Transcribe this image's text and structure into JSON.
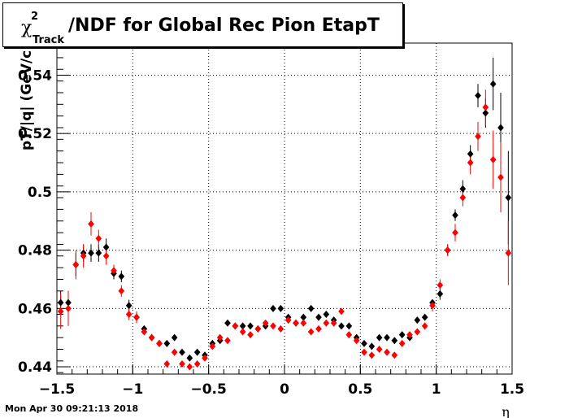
{
  "title": {
    "chi_symbol": "χ",
    "chi_superscript": "2",
    "chi_subscript": "Track",
    "rest": "/NDF for Global Rec Pion EtapT"
  },
  "timestamp": "Mon Apr 30 09:21:13 2018",
  "chart_data": {
    "type": "scatter",
    "xlabel": "η",
    "ylabel": "pT/|q| (GeV/c)",
    "xlim": [
      -1.5,
      1.5
    ],
    "ylim": [
      0.4375,
      0.551
    ],
    "xticks": [
      -1.5,
      -1,
      -0.5,
      0,
      0.5,
      1,
      1.5
    ],
    "xtick_labels": [
      "−1.5",
      "−1",
      "−0.5",
      "0",
      "0.5",
      "1",
      "1.5"
    ],
    "yticks": [
      0.44,
      0.46,
      0.48,
      0.5,
      0.52,
      0.54
    ],
    "ytick_labels": [
      "0.44",
      "0.46",
      "0.48",
      "0.5",
      "0.52",
      "0.54"
    ],
    "grid": true,
    "colors": {
      "black": "#000000",
      "red": "#ff0000"
    },
    "series": [
      {
        "color": "#000000",
        "x": [
          -1.475,
          -1.425,
          -1.375,
          -1.325,
          -1.275,
          -1.225,
          -1.175,
          -1.125,
          -1.075,
          -1.025,
          -0.975,
          -0.925,
          -0.875,
          -0.825,
          -0.775,
          -0.725,
          -0.675,
          -0.625,
          -0.575,
          -0.525,
          -0.475,
          -0.425,
          -0.375,
          -0.325,
          -0.275,
          -0.225,
          -0.175,
          -0.125,
          -0.075,
          -0.025,
          0.025,
          0.075,
          0.125,
          0.175,
          0.225,
          0.275,
          0.325,
          0.375,
          0.425,
          0.475,
          0.525,
          0.575,
          0.625,
          0.675,
          0.725,
          0.775,
          0.825,
          0.875,
          0.925,
          0.975,
          1.025,
          1.075,
          1.125,
          1.175,
          1.225,
          1.275,
          1.325,
          1.375,
          1.425,
          1.475
        ],
        "y": [
          0.462,
          0.462,
          0.475,
          0.479,
          0.479,
          0.479,
          0.481,
          0.472,
          0.471,
          0.461,
          0.457,
          0.453,
          0.45,
          0.448,
          0.448,
          0.45,
          0.445,
          0.443,
          0.445,
          0.444,
          0.448,
          0.449,
          0.455,
          0.454,
          0.454,
          0.454,
          0.453,
          0.454,
          0.46,
          0.46,
          0.457,
          0.455,
          0.457,
          0.46,
          0.457,
          0.458,
          0.456,
          0.454,
          0.454,
          0.45,
          0.448,
          0.447,
          0.45,
          0.45,
          0.449,
          0.451,
          0.45,
          0.456,
          0.457,
          0.462,
          0.465,
          0.48,
          0.492,
          0.501,
          0.513,
          0.533,
          0.527,
          0.537,
          0.522,
          0.498
        ],
        "err": [
          0.004,
          0.004,
          0.004,
          0.003,
          0.003,
          0.003,
          0.003,
          0.002,
          0.002,
          0.002,
          0.002,
          0.001,
          0.001,
          0.001,
          0.001,
          0.001,
          0.001,
          0.001,
          0.001,
          0.001,
          0.001,
          0.001,
          0.001,
          0.001,
          0.001,
          0.001,
          0.001,
          0.001,
          0.001,
          0.001,
          0.001,
          0.001,
          0.001,
          0.001,
          0.001,
          0.001,
          0.001,
          0.001,
          0.001,
          0.001,
          0.001,
          0.001,
          0.001,
          0.001,
          0.001,
          0.001,
          0.001,
          0.001,
          0.001,
          0.001,
          0.002,
          0.002,
          0.002,
          0.003,
          0.003,
          0.004,
          0.005,
          0.009,
          0.012,
          0.016
        ]
      },
      {
        "color": "#ff0000",
        "x": [
          -1.475,
          -1.425,
          -1.375,
          -1.325,
          -1.275,
          -1.225,
          -1.175,
          -1.125,
          -1.075,
          -1.025,
          -0.975,
          -0.925,
          -0.875,
          -0.825,
          -0.775,
          -0.725,
          -0.675,
          -0.625,
          -0.575,
          -0.525,
          -0.475,
          -0.425,
          -0.375,
          -0.325,
          -0.275,
          -0.225,
          -0.175,
          -0.125,
          -0.075,
          -0.025,
          0.025,
          0.075,
          0.125,
          0.175,
          0.225,
          0.275,
          0.325,
          0.375,
          0.425,
          0.475,
          0.525,
          0.575,
          0.625,
          0.675,
          0.725,
          0.775,
          0.825,
          0.875,
          0.925,
          0.975,
          1.025,
          1.075,
          1.125,
          1.175,
          1.225,
          1.275,
          1.325,
          1.375,
          1.425,
          1.475
        ],
        "y": [
          0.459,
          0.46,
          0.475,
          0.478,
          0.489,
          0.484,
          0.478,
          0.473,
          0.466,
          0.458,
          0.457,
          0.452,
          0.45,
          0.448,
          0.441,
          0.445,
          0.441,
          0.44,
          0.441,
          0.443,
          0.447,
          0.45,
          0.449,
          0.454,
          0.452,
          0.451,
          0.453,
          0.455,
          0.454,
          0.453,
          0.456,
          0.455,
          0.455,
          0.452,
          0.453,
          0.455,
          0.455,
          0.459,
          0.451,
          0.449,
          0.445,
          0.444,
          0.446,
          0.445,
          0.444,
          0.448,
          0.451,
          0.452,
          0.454,
          0.461,
          0.468,
          0.48,
          0.486,
          0.498,
          0.51,
          0.519,
          0.529,
          0.511,
          0.505,
          0.479
        ],
        "err": [
          0.006,
          0.006,
          0.005,
          0.004,
          0.004,
          0.003,
          0.003,
          0.002,
          0.002,
          0.002,
          0.002,
          0.001,
          0.001,
          0.001,
          0.001,
          0.001,
          0.001,
          0.001,
          0.001,
          0.001,
          0.001,
          0.001,
          0.001,
          0.001,
          0.001,
          0.001,
          0.001,
          0.001,
          0.001,
          0.001,
          0.001,
          0.001,
          0.001,
          0.001,
          0.001,
          0.001,
          0.001,
          0.001,
          0.001,
          0.001,
          0.001,
          0.001,
          0.001,
          0.001,
          0.001,
          0.001,
          0.001,
          0.001,
          0.001,
          0.002,
          0.002,
          0.002,
          0.003,
          0.003,
          0.004,
          0.005,
          0.006,
          0.01,
          0.012,
          0.011
        ]
      }
    ]
  }
}
